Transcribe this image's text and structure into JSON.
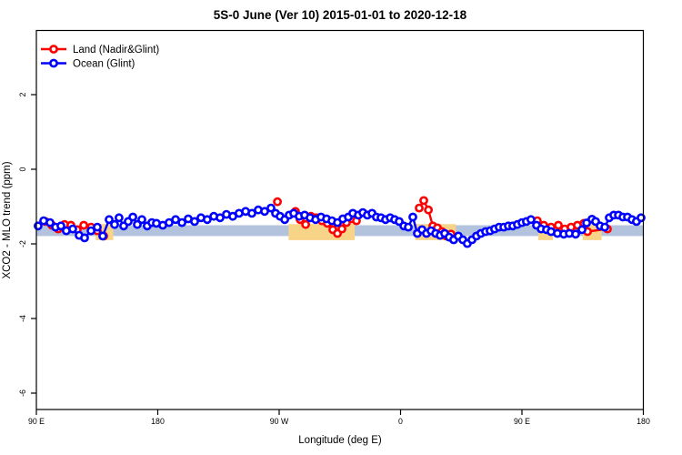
{
  "title": "5S-0 June (Ver 10)   2015-01-01 to 2020-12-18",
  "legend": {
    "items": [
      {
        "label": "Land (Nadir&Glint)",
        "color": "#ff0000"
      },
      {
        "label": "Ocean (Glint)",
        "color": "#0000ff"
      }
    ]
  },
  "chart_data": {
    "type": "line",
    "title": "5S-0 June (Ver 10)   2015-01-01 to 2020-12-18",
    "xlabel": "Longitude (deg E)",
    "ylabel": "XCO2 - MLO trend (ppm)",
    "xlim": [
      90,
      540
    ],
    "ylim": [
      -6.4,
      3.7
    ],
    "grid": "off",
    "legend_position": "top-left",
    "x_ticks": [
      {
        "value": 90,
        "label": "90 E"
      },
      {
        "value": 180,
        "label": "180"
      },
      {
        "value": 270,
        "label": "90 W"
      },
      {
        "value": 360,
        "label": "0"
      },
      {
        "value": 450,
        "label": "90 E"
      },
      {
        "value": 540,
        "label": "180"
      }
    ],
    "y_ticks": [
      {
        "value": 2,
        "label": "2"
      },
      {
        "value": 0,
        "label": "0"
      },
      {
        "value": -2,
        "label": "-2"
      },
      {
        "value": -4,
        "label": "-4"
      },
      {
        "value": -6,
        "label": "-6"
      }
    ],
    "bands": {
      "ocean_band": {
        "name": "ocean-mean-band",
        "color": "#b4c3dd",
        "x": [
          90,
          540
        ],
        "y": [
          -1.79,
          -1.5
        ]
      },
      "land_segments": {
        "name": "land-highlight-band",
        "color": "#f7d488",
        "y": [
          -1.9,
          -1.47
        ],
        "x_ranges": [
          [
            134,
            147
          ],
          [
            277,
            326
          ],
          [
            371,
            401
          ],
          [
            462,
            473
          ],
          [
            495,
            509
          ]
        ]
      }
    },
    "series": [
      {
        "name": "Land (Nadir&Glint)",
        "color": "#ff0000",
        "marker": "open-circle",
        "segments": [
          [
            [
              96.7,
              -1.4
            ],
            [
              101.5,
              -1.5
            ],
            [
              106.2,
              -1.6
            ],
            [
              110.9,
              -1.48
            ],
            [
              115.6,
              -1.5
            ],
            [
              120.3,
              -1.62
            ],
            [
              125.1,
              -1.5
            ],
            [
              130.5,
              -1.55
            ],
            [
              135.2,
              -1.65
            ],
            [
              139.9,
              -1.79
            ]
          ],
          [
            [
              268.7,
              -0.87
            ]
          ],
          [
            [
              282.1,
              -1.13
            ],
            [
              285.5,
              -1.35
            ],
            [
              289.6,
              -1.48
            ],
            [
              293.6,
              -1.26
            ],
            [
              297.7,
              -1.3
            ],
            [
              301.7,
              -1.38
            ],
            [
              305.7,
              -1.45
            ],
            [
              309.8,
              -1.62
            ],
            [
              313.2,
              -1.72
            ],
            [
              316.5,
              -1.6
            ],
            [
              319.9,
              -1.43
            ],
            [
              323.9,
              -1.33
            ],
            [
              327.3,
              -1.38
            ]
          ],
          [
            [
              373.8,
              -1.04
            ],
            [
              377.2,
              -0.84
            ],
            [
              380.6,
              -1.09
            ],
            [
              383.9,
              -1.52
            ],
            [
              387.3,
              -1.57
            ],
            [
              390.7,
              -1.67
            ],
            [
              394.0,
              -1.79
            ],
            [
              397.4,
              -1.74
            ]
          ],
          [
            [
              461.4,
              -1.38
            ],
            [
              466.2,
              -1.5
            ],
            [
              471.6,
              -1.55
            ],
            [
              477.0,
              -1.5
            ],
            [
              481.7,
              -1.6
            ],
            [
              486.4,
              -1.55
            ],
            [
              491.1,
              -1.5
            ],
            [
              495.9,
              -1.45
            ],
            [
              498.6,
              -1.67
            ],
            [
              513.4,
              -1.6
            ]
          ]
        ]
      },
      {
        "name": "Ocean (Glint)",
        "color": "#0000ff",
        "marker": "open-circle",
        "segments": [
          [
            [
              91.3,
              -1.52
            ],
            [
              95.4,
              -1.38
            ],
            [
              100.1,
              -1.43
            ],
            [
              104.2,
              -1.55
            ],
            [
              108.2,
              -1.52
            ],
            [
              112.2,
              -1.65
            ],
            [
              117.0,
              -1.6
            ],
            [
              121.7,
              -1.77
            ],
            [
              125.7,
              -1.84
            ],
            [
              130.5,
              -1.65
            ],
            [
              135.2,
              -1.55
            ],
            [
              139.2,
              -1.79
            ],
            [
              143.9,
              -1.35
            ],
            [
              148.0,
              -1.48
            ],
            [
              151.3,
              -1.3
            ],
            [
              154.7,
              -1.52
            ],
            [
              158.1,
              -1.4
            ],
            [
              161.5,
              -1.28
            ],
            [
              164.8,
              -1.48
            ],
            [
              168.2,
              -1.35
            ],
            [
              172.2,
              -1.52
            ],
            [
              175.6,
              -1.43
            ],
            [
              179.0,
              -1.45
            ],
            [
              183.7,
              -1.5
            ],
            [
              188.4,
              -1.43
            ],
            [
              193.2,
              -1.35
            ],
            [
              197.9,
              -1.43
            ],
            [
              202.6,
              -1.33
            ],
            [
              207.3,
              -1.4
            ],
            [
              212.0,
              -1.3
            ],
            [
              216.7,
              -1.35
            ],
            [
              221.5,
              -1.26
            ],
            [
              226.2,
              -1.3
            ],
            [
              230.9,
              -1.21
            ],
            [
              235.6,
              -1.26
            ],
            [
              240.3,
              -1.18
            ],
            [
              245.1,
              -1.13
            ],
            [
              249.8,
              -1.18
            ],
            [
              254.5,
              -1.09
            ],
            [
              259.2,
              -1.13
            ],
            [
              263.9,
              -1.04
            ],
            [
              267.3,
              -1.18
            ],
            [
              270.7,
              -1.26
            ],
            [
              274.1,
              -1.35
            ],
            [
              277.4,
              -1.23
            ],
            [
              280.8,
              -1.18
            ],
            [
              284.8,
              -1.26
            ],
            [
              288.9,
              -1.23
            ],
            [
              292.9,
              -1.3
            ],
            [
              297.0,
              -1.35
            ],
            [
              301.0,
              -1.28
            ],
            [
              305.1,
              -1.33
            ],
            [
              309.1,
              -1.38
            ],
            [
              313.2,
              -1.43
            ],
            [
              317.2,
              -1.33
            ],
            [
              321.3,
              -1.28
            ],
            [
              324.6,
              -1.18
            ],
            [
              328.7,
              -1.23
            ],
            [
              332.0,
              -1.16
            ],
            [
              335.4,
              -1.23
            ],
            [
              338.8,
              -1.18
            ],
            [
              342.1,
              -1.28
            ],
            [
              345.5,
              -1.3
            ],
            [
              348.9,
              -1.35
            ],
            [
              352.3,
              -1.3
            ],
            [
              355.6,
              -1.35
            ],
            [
              359.0,
              -1.4
            ],
            [
              362.4,
              -1.52
            ],
            [
              365.7,
              -1.55
            ],
            [
              369.1,
              -1.28
            ],
            [
              372.5,
              -1.72
            ],
            [
              375.9,
              -1.62
            ],
            [
              379.2,
              -1.72
            ],
            [
              382.6,
              -1.65
            ],
            [
              386.0,
              -1.72
            ],
            [
              389.3,
              -1.77
            ],
            [
              392.7,
              -1.72
            ],
            [
              396.1,
              -1.82
            ],
            [
              399.4,
              -1.89
            ],
            [
              402.8,
              -1.79
            ],
            [
              406.2,
              -1.89
            ],
            [
              409.5,
              -1.99
            ],
            [
              412.9,
              -1.89
            ],
            [
              416.3,
              -1.79
            ],
            [
              419.6,
              -1.72
            ],
            [
              423.0,
              -1.67
            ],
            [
              426.4,
              -1.65
            ],
            [
              429.7,
              -1.6
            ],
            [
              433.1,
              -1.55
            ],
            [
              436.5,
              -1.55
            ],
            [
              439.9,
              -1.52
            ],
            [
              443.2,
              -1.52
            ],
            [
              446.6,
              -1.48
            ],
            [
              450.0,
              -1.43
            ],
            [
              453.3,
              -1.4
            ],
            [
              456.7,
              -1.35
            ],
            [
              460.8,
              -1.5
            ],
            [
              464.2,
              -1.6
            ],
            [
              468.2,
              -1.62
            ],
            [
              471.6,
              -1.67
            ],
            [
              476.3,
              -1.72
            ],
            [
              481.0,
              -1.74
            ],
            [
              485.1,
              -1.72
            ],
            [
              489.8,
              -1.74
            ],
            [
              494.5,
              -1.62
            ],
            [
              497.9,
              -1.44
            ],
            [
              501.9,
              -1.34
            ],
            [
              504.6,
              -1.4
            ],
            [
              508.0,
              -1.52
            ],
            [
              511.4,
              -1.55
            ],
            [
              514.7,
              -1.3
            ],
            [
              518.1,
              -1.23
            ],
            [
              521.5,
              -1.23
            ],
            [
              524.8,
              -1.28
            ],
            [
              528.2,
              -1.28
            ],
            [
              531.6,
              -1.35
            ],
            [
              534.9,
              -1.4
            ],
            [
              538.3,
              -1.3
            ]
          ]
        ]
      }
    ]
  }
}
